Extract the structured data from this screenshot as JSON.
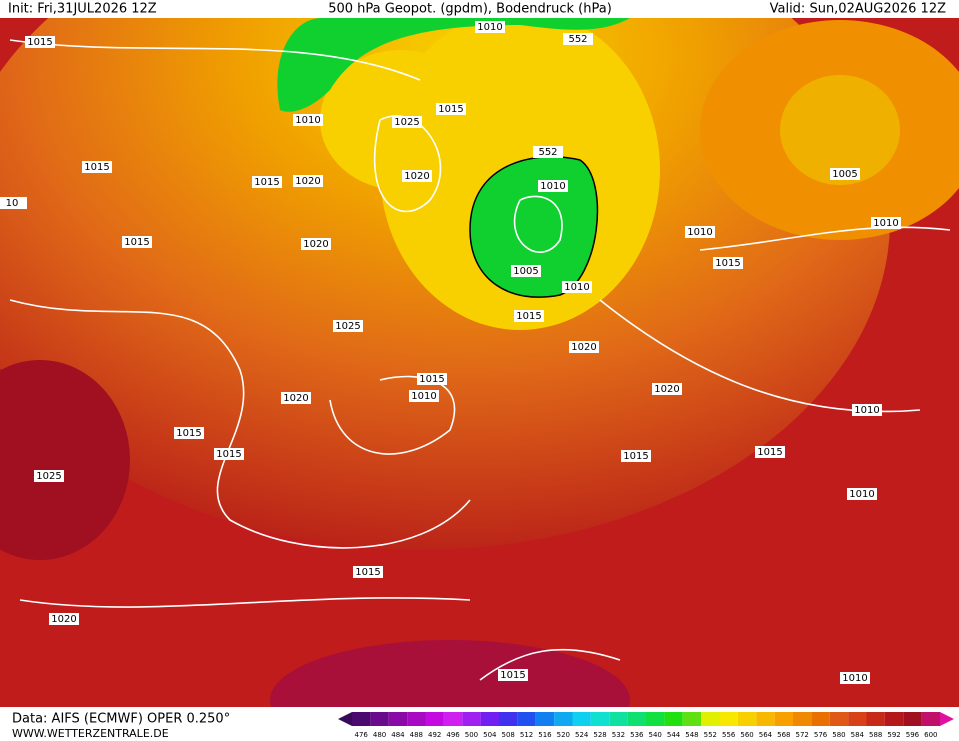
{
  "header": {
    "init": "Init: Fri,31JUL2026 12Z",
    "title": "500 hPa Geopot. (gpdm), Bodendruck (hPa)",
    "valid": "Valid: Sun,02AUG2026 12Z"
  },
  "footer": {
    "data": "Data: AIFS (ECMWF) OPER 0.250°",
    "site": "WWW.WETTERZENTRALE.DE"
  },
  "colorbar": {
    "labels": [
      "476",
      "480",
      "484",
      "488",
      "492",
      "496",
      "500",
      "504",
      "508",
      "512",
      "516",
      "520",
      "524",
      "528",
      "532",
      "536",
      "540",
      "544",
      "548",
      "552",
      "556",
      "560",
      "564",
      "568",
      "572",
      "576",
      "580",
      "584",
      "588",
      "592",
      "596",
      "600"
    ],
    "colors": [
      "#4b0a6e",
      "#6a0a8c",
      "#8a0aa8",
      "#a80ac4",
      "#c40ae0",
      "#d020f0",
      "#a020f0",
      "#7020f0",
      "#4030f0",
      "#2050f0",
      "#1080f0",
      "#10a8f0",
      "#10d0f0",
      "#10e0d0",
      "#10e0a0",
      "#10e070",
      "#10e040",
      "#20e010",
      "#60e010",
      "#e0f000",
      "#f8e800",
      "#f8d000",
      "#f8b800",
      "#f8a000",
      "#f08800",
      "#e87000",
      "#e05818",
      "#d84018",
      "#c82818",
      "#b41818",
      "#a01020",
      "#c0106a"
    ]
  },
  "map": {
    "labels": [
      "1015",
      "1010",
      "552",
      "1015",
      "1010",
      "1025",
      "1015",
      "1015",
      "1020",
      "1020",
      "552",
      "1010",
      "1005",
      "1010",
      "1010",
      "1015",
      "1015",
      "1020",
      "1005",
      "1010",
      "1015",
      "1025",
      "1020",
      "1015",
      "1010",
      "1020",
      "1020",
      "1010",
      "1015",
      "1015",
      "1015",
      "1015",
      "1010",
      "1025",
      "1015",
      "1020",
      "1015",
      "1010",
      "10"
    ]
  }
}
